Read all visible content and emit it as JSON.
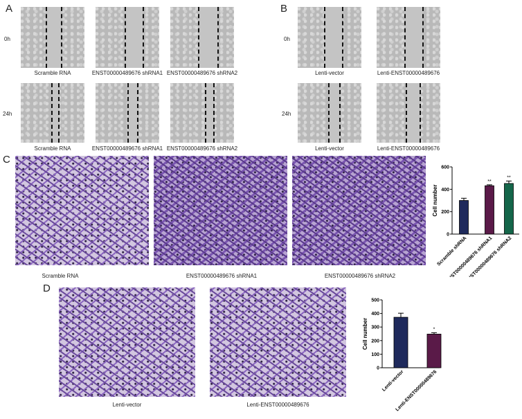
{
  "panels": {
    "a": "A",
    "b": "B",
    "c": "C",
    "d": "D"
  },
  "timepoints": {
    "t0": "0h",
    "t24": "24h"
  },
  "panel_a": {
    "labels": [
      "Scramble RNA",
      "ENST00000489676 shRNA1",
      "ENST00000489676 shRNA2"
    ]
  },
  "panel_b": {
    "labels": [
      "Lenti-vector",
      "Lenti-ENST00000489676"
    ]
  },
  "panel_c": {
    "labels": [
      "Scramble RNA",
      "ENST00000489676 shRNA1",
      "ENST00000489676 shRNA2"
    ]
  },
  "panel_d": {
    "labels": [
      "Lenti-vector",
      "Lenti-ENST00000489676"
    ]
  },
  "chart_data": [
    {
      "type": "bar",
      "panel": "C",
      "categories": [
        "Scramble shRNA",
        "ENST00000489676 shRNA1",
        "ENST00000489676 shRNA2"
      ],
      "values": [
        300,
        432,
        452
      ],
      "errors": [
        20,
        8,
        22
      ],
      "significance": [
        "",
        "**",
        "**"
      ],
      "colors": [
        "#1f2a5c",
        "#5a1a48",
        "#14664a"
      ],
      "ylabel": "Cell number",
      "ylim": [
        0,
        600
      ],
      "yticks": [
        0,
        200,
        400,
        600
      ]
    },
    {
      "type": "bar",
      "panel": "D",
      "categories": [
        "Lenti-vector",
        "Lenti-ENST00000489676"
      ],
      "values": [
        372,
        248
      ],
      "errors": [
        30,
        10
      ],
      "significance": [
        "",
        "*"
      ],
      "colors": [
        "#1f2a5c",
        "#5a1a48"
      ],
      "ylabel": "Cell number",
      "ylim": [
        0,
        500
      ],
      "yticks": [
        0,
        100,
        200,
        300,
        400,
        500
      ]
    }
  ]
}
